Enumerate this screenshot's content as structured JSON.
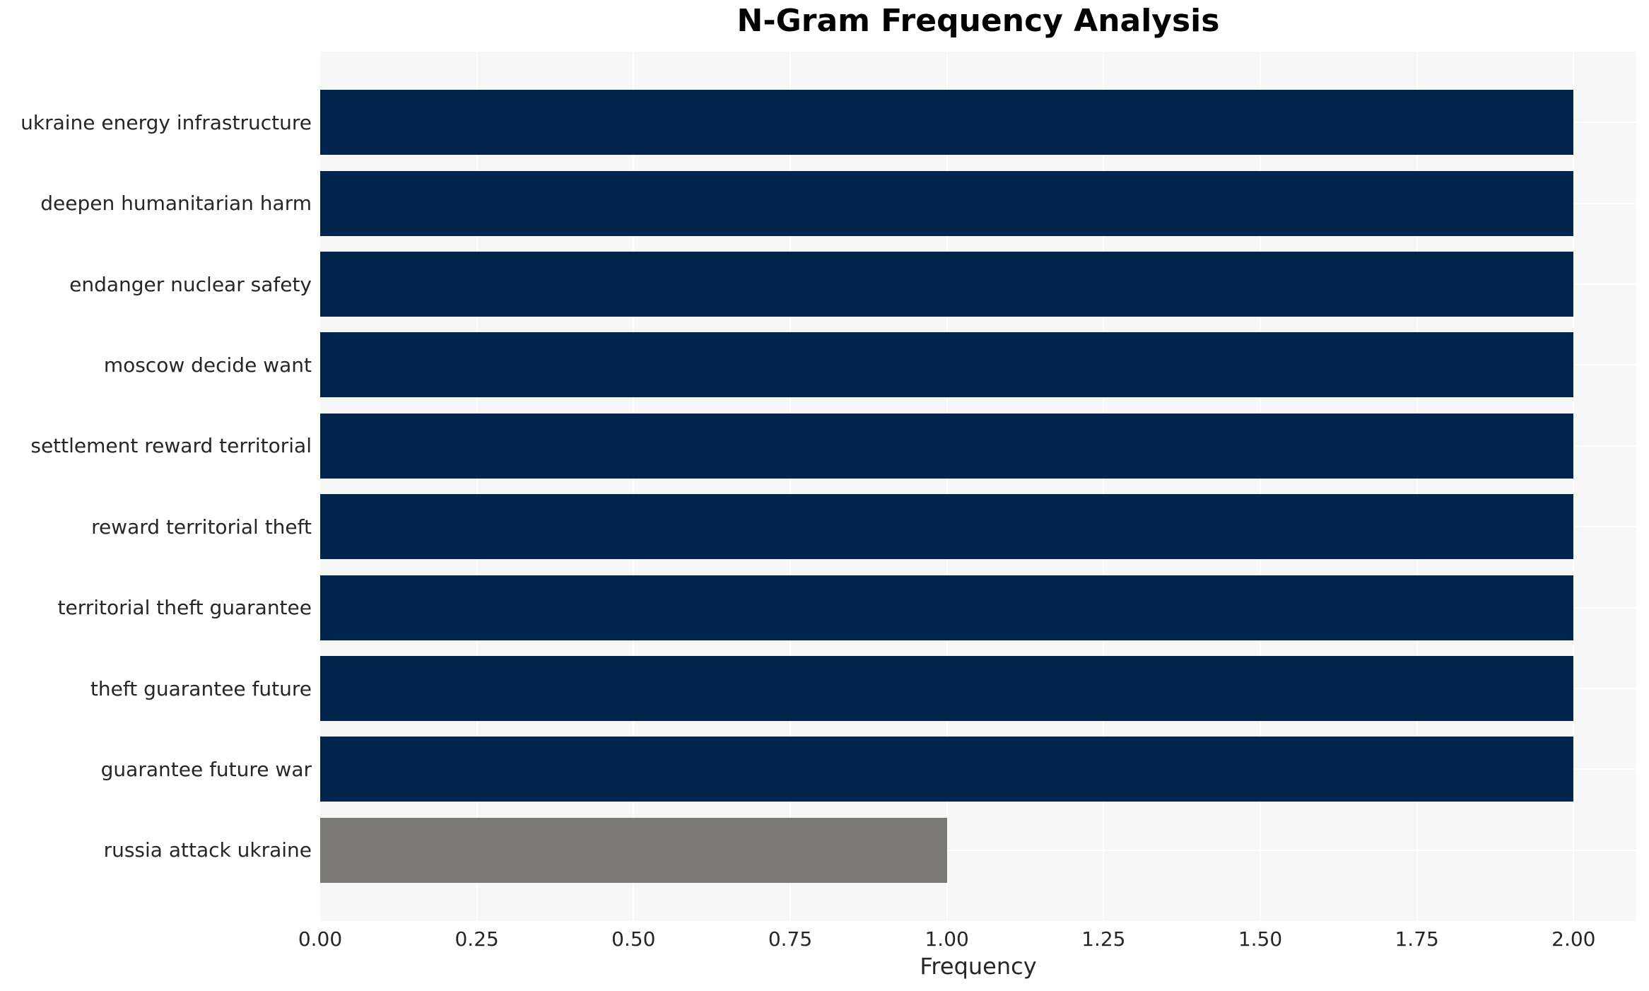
{
  "figure": {
    "title": "N-Gram Frequency Analysis"
  },
  "chart_data": {
    "type": "bar",
    "orientation": "horizontal",
    "title": "N-Gram Frequency Analysis",
    "xlabel": "Frequency",
    "ylabel": "",
    "categories": [
      "ukraine energy infrastructure",
      "deepen humanitarian harm",
      "endanger nuclear safety",
      "moscow decide want",
      "settlement reward territorial",
      "reward territorial theft",
      "territorial theft guarantee",
      "theft guarantee future",
      "guarantee future war",
      "russia attack ukraine"
    ],
    "values": [
      2,
      2,
      2,
      2,
      2,
      2,
      2,
      2,
      2,
      1
    ],
    "bar_colors": [
      "#02254d",
      "#02254d",
      "#02254d",
      "#02254d",
      "#02254d",
      "#02254d",
      "#02254d",
      "#02254d",
      "#02254d",
      "#7b7a77"
    ],
    "xlim": [
      0,
      2.1
    ],
    "xticks": [
      0,
      0.25,
      0.5,
      0.75,
      1.0,
      1.25,
      1.5,
      1.75,
      2.0
    ],
    "xtick_labels": [
      "0.00",
      "0.25",
      "0.50",
      "0.75",
      "1.00",
      "1.25",
      "1.50",
      "1.75",
      "2.00"
    ],
    "grid": true,
    "legend": false,
    "colors": {
      "bar_primary": "#02254d",
      "bar_secondary": "#7b7a77",
      "plot_background": "#f7f7f7",
      "gridline": "#ffffff",
      "text": "#262626",
      "title_text": "#000000",
      "page_background": "#ffffff"
    }
  }
}
